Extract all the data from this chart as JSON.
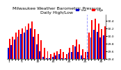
{
  "title": "Milwaukee Weather Barometric Pressure",
  "subtitle": "Daily High/Low",
  "bar_width": 0.42,
  "background_color": "#ffffff",
  "high_color": "#ff0000",
  "low_color": "#0000cc",
  "dashed_line_color": "#8888ff",
  "ylim": [
    29.4,
    30.55
  ],
  "yticks": [
    29.4,
    29.6,
    29.8,
    30.0,
    30.2,
    30.4
  ],
  "num_groups": 31,
  "high_values": [
    29.92,
    29.98,
    30.08,
    30.15,
    30.2,
    30.25,
    30.32,
    30.38,
    30.18,
    30.05,
    29.88,
    29.68,
    29.6,
    29.52,
    29.55,
    29.6,
    29.65,
    29.58,
    29.52,
    29.68,
    29.75,
    29.9,
    29.78,
    29.65,
    29.58,
    30.08,
    30.42,
    30.45,
    30.32,
    30.18,
    30.25
  ],
  "low_values": [
    29.68,
    29.75,
    29.9,
    29.98,
    30.05,
    30.08,
    30.15,
    30.2,
    29.98,
    29.78,
    29.6,
    29.45,
    29.42,
    29.42,
    29.45,
    29.48,
    29.52,
    29.42,
    29.42,
    29.55,
    29.58,
    29.72,
    29.58,
    29.48,
    29.42,
    29.58,
    29.95,
    30.15,
    30.1,
    29.95,
    30.02
  ],
  "dashed_line_index": 24.5,
  "xlabels": [
    "1",
    "",
    "",
    "",
    "5",
    "",
    "",
    "",
    "",
    "10",
    "",
    "",
    "",
    "",
    "15",
    "",
    "",
    "",
    "",
    "20",
    "",
    "",
    "",
    "",
    "25",
    "",
    "",
    "",
    "",
    "30",
    ""
  ],
  "legend_high": "High",
  "legend_low": "Low",
  "title_fontsize": 4.5,
  "tick_fontsize": 3.2,
  "legend_fontsize": 3.0
}
